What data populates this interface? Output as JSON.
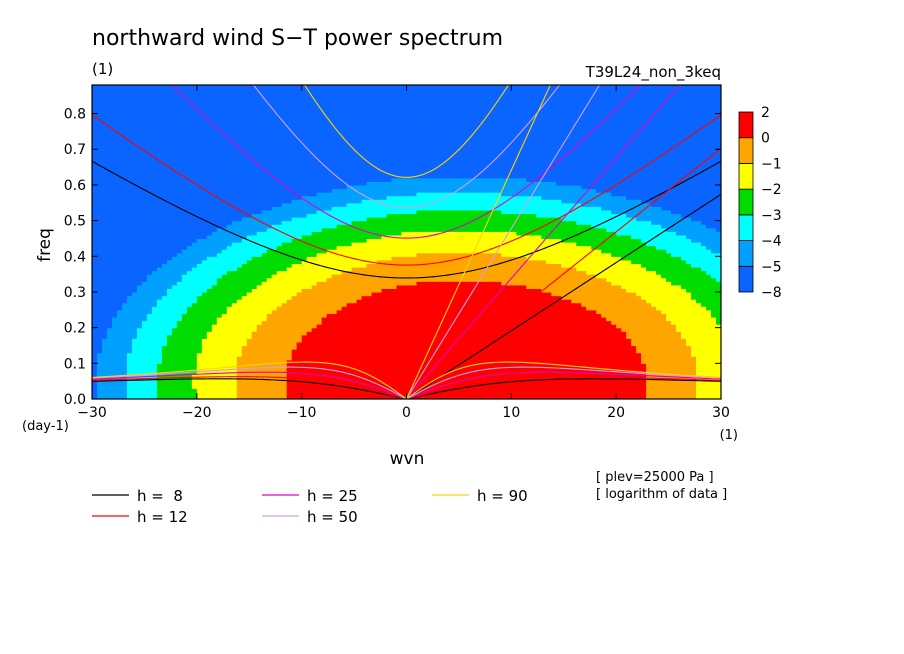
{
  "chart_data": {
    "type": "heatmap",
    "title": "northward wind S−T power spectrum",
    "unit": "(1)",
    "run_label": "T39L24_non_3keq",
    "xlabel": "wvn",
    "x_unit": "(1)",
    "ylabel": "freq",
    "y_unit": "(day-1)",
    "xlim": [
      -30,
      30
    ],
    "ylim": [
      0,
      0.88
    ],
    "x_ticks": [
      -30,
      -20,
      -10,
      0,
      10,
      20,
      30
    ],
    "x_tick_labels": [
      "−30",
      "−20",
      "−10",
      "0",
      "10",
      "20",
      "30"
    ],
    "y_ticks": [
      0,
      0.1,
      0.2,
      0.3,
      0.4,
      0.5,
      0.6,
      0.7,
      0.8
    ],
    "y_tick_labels": [
      "0.0",
      "0.1",
      "0.2",
      "0.3",
      "0.4",
      "0.5",
      "0.6",
      "0.7",
      "0.8"
    ],
    "colorbar": {
      "levels": [
        -8,
        -5,
        -4,
        -3,
        -2,
        -1,
        0,
        2
      ],
      "labels": [
        "−8",
        "−5",
        "−4",
        "−3",
        "−2",
        "−1",
        "0",
        "2"
      ],
      "colors": [
        "#0a64ff",
        "#00a0ff",
        "#00ffff",
        "#00dc00",
        "#ffff00",
        "#ffa500",
        "#ff0000"
      ]
    },
    "field": {
      "description_levels": "log10 power, filled between colorbar levels",
      "peak": {
        "wvn": 5,
        "freq": 0.05,
        "value": 1.6
      }
    },
    "dispersion_curves": {
      "equivalent_depths_m": [
        8,
        12,
        25,
        50,
        90
      ],
      "series": [
        {
          "name": "h =  8",
          "h": 8,
          "color": "#000000"
        },
        {
          "name": "h = 12",
          "h": 12,
          "color": "#ff0000"
        },
        {
          "name": "h = 25",
          "h": 25,
          "color": "#e000c8"
        },
        {
          "name": "h = 50",
          "h": 50,
          "color": "#d2a0e6"
        },
        {
          "name": "h = 90",
          "h": 90,
          "color": "#ffd200"
        }
      ]
    },
    "notes": [
      "[ plev=25000 Pa ]",
      "[ logarithm of data ]"
    ]
  }
}
